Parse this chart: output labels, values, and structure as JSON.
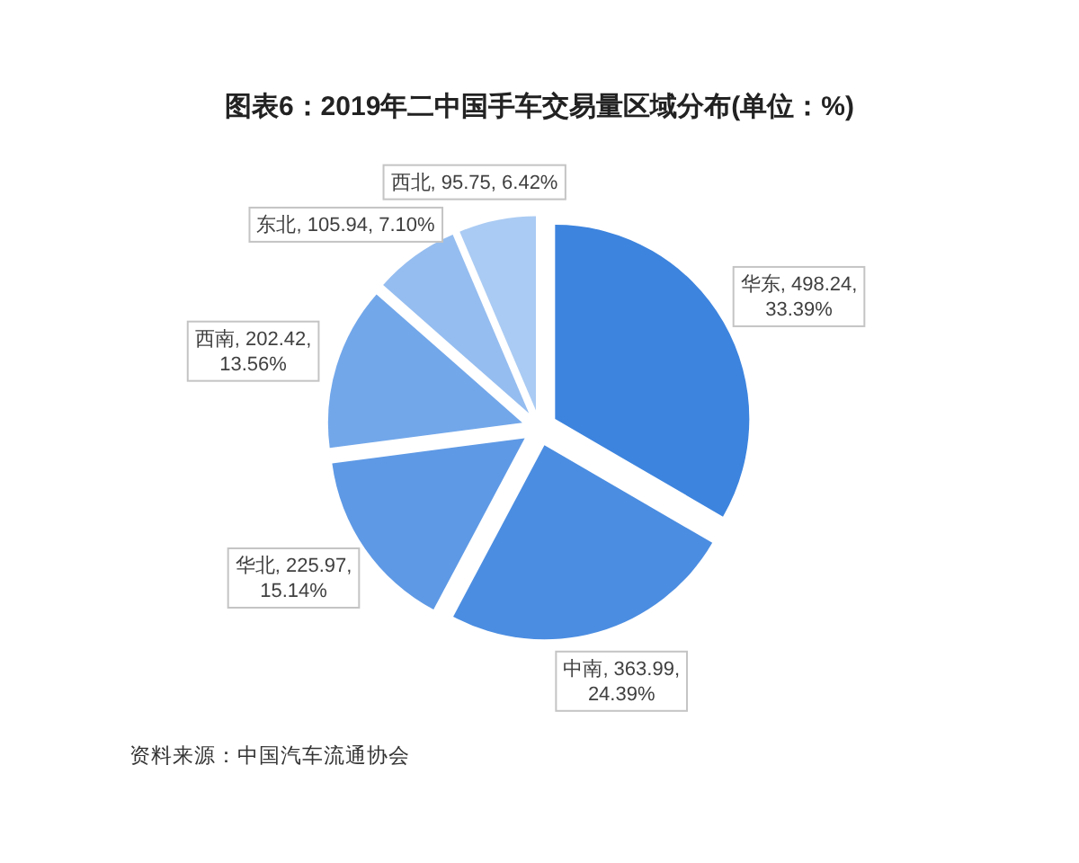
{
  "chart_data": {
    "type": "pie",
    "title": "图表6：2019年二中国手车交易量区域分布(单位：%)",
    "categories": [
      "华东",
      "中南",
      "华北",
      "西南",
      "东北",
      "西北"
    ],
    "values": [
      498.24,
      363.99,
      225.97,
      202.42,
      105.94,
      95.75
    ],
    "value_labels": [
      "498.24,\n33.39%",
      "363.99,\n24.39%",
      "225.97,\n15.14%",
      "202.42,\n13.56%",
      "105.94, 7.10%",
      "95.75, 6.42%"
    ],
    "colors": [
      "#3d84de",
      "#4b8de1",
      "#5e99e5",
      "#72a7ea",
      "#95bdf0",
      "#aacbf3"
    ],
    "annotations": [
      "资料来源：中国汽车流通协会"
    ]
  }
}
